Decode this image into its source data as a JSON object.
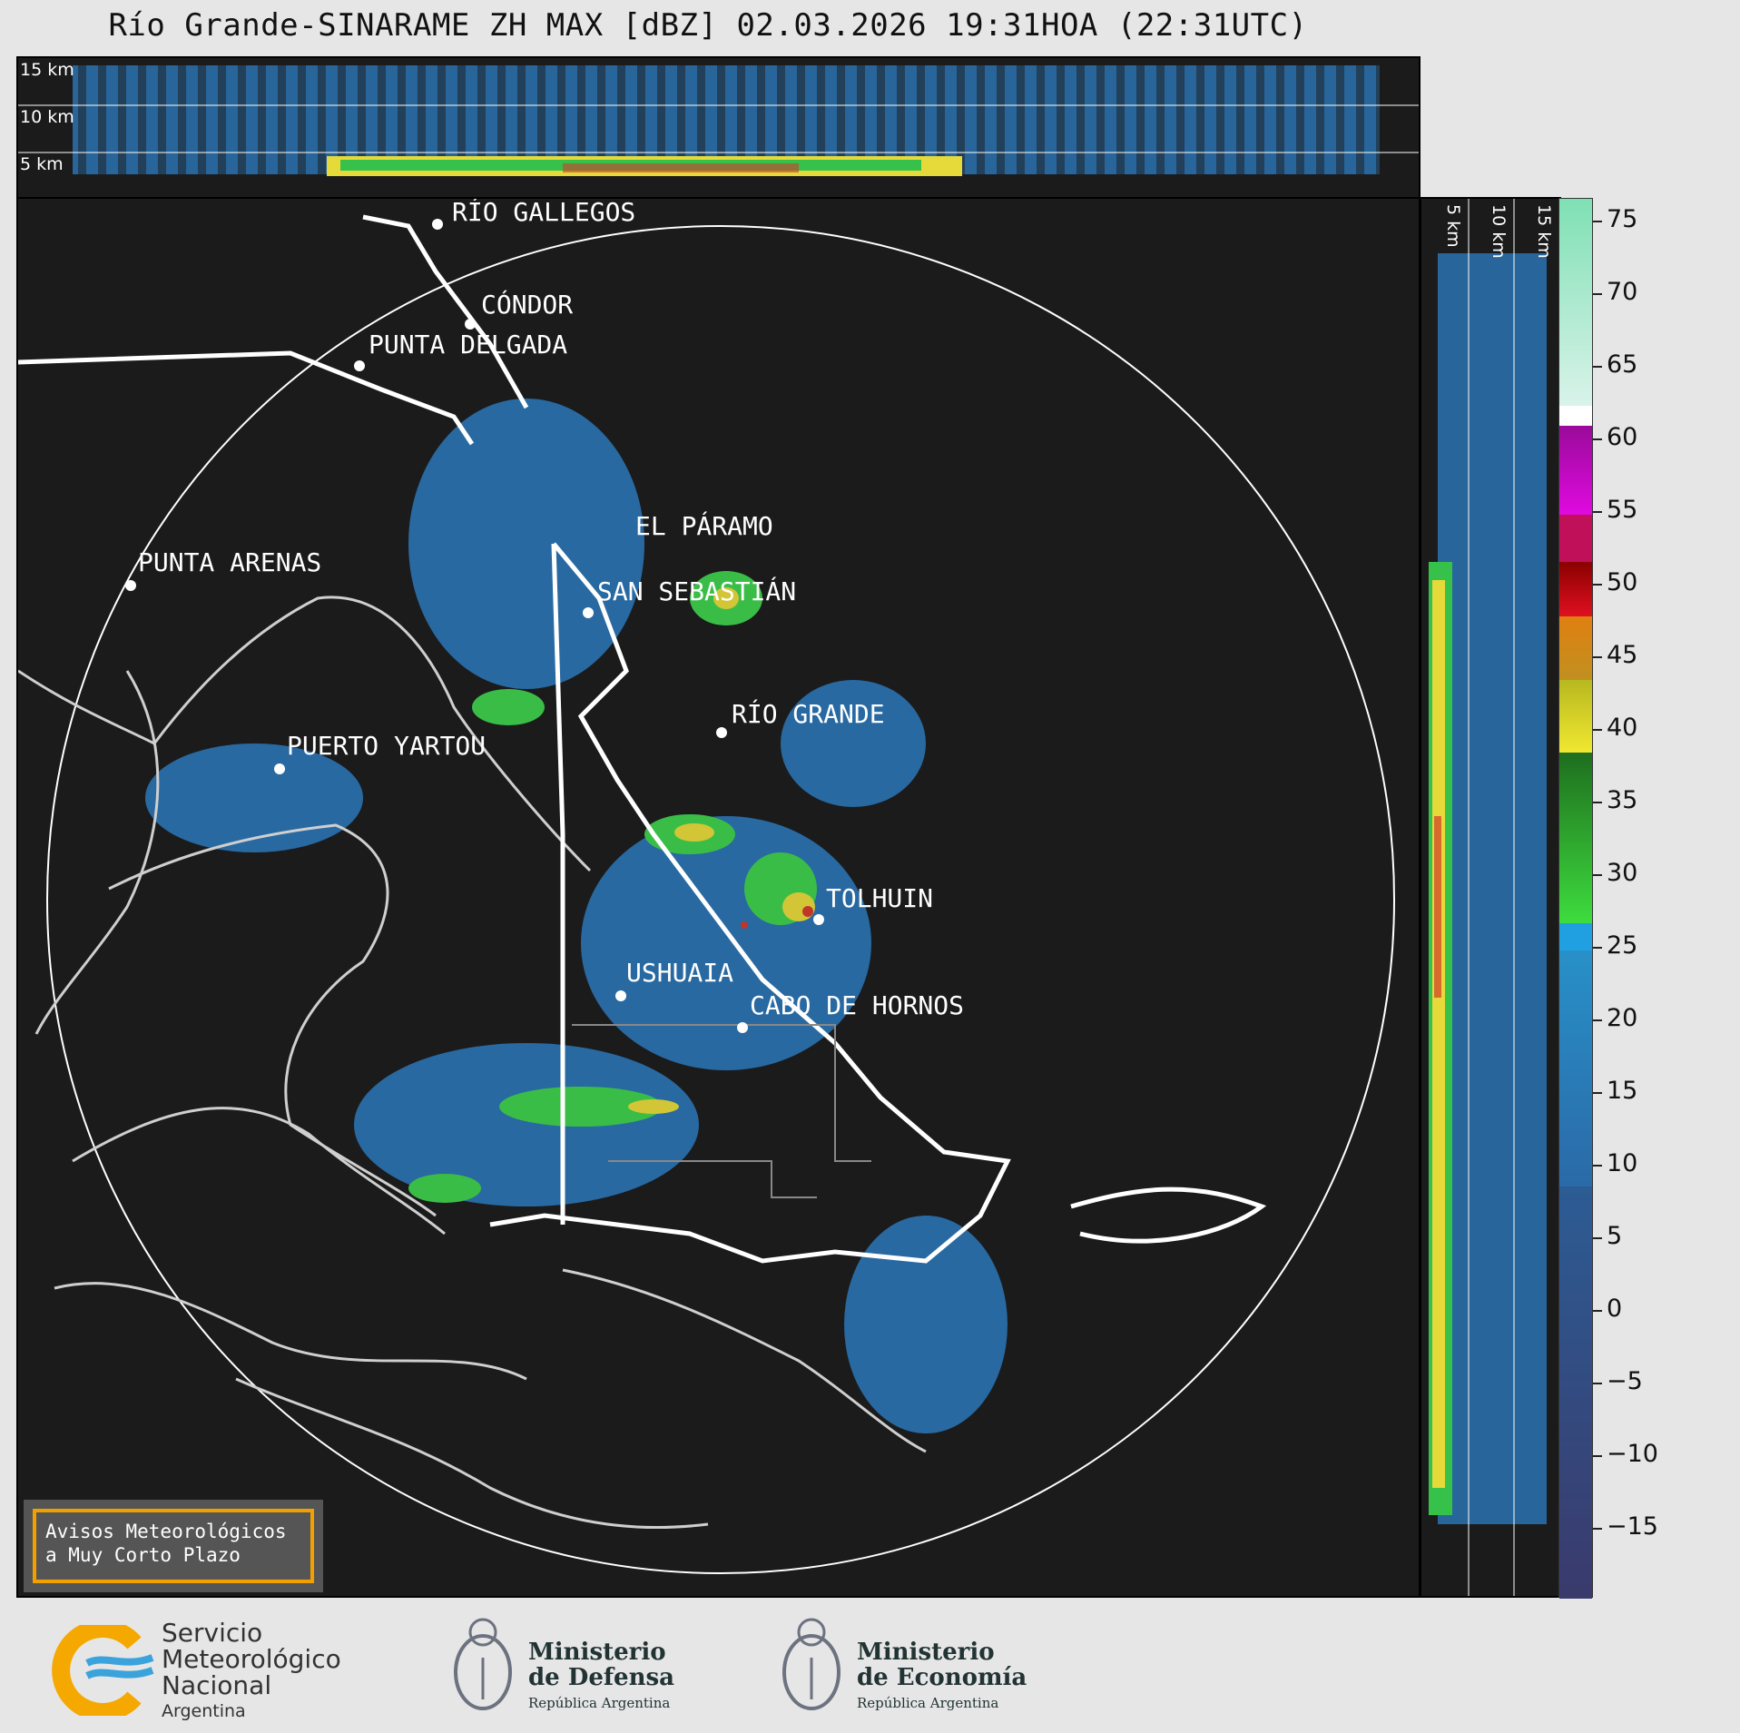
{
  "title": "Río Grande-SINARAME ZH MAX [dBZ] 02.03.2026 19:31HOA (22:31UTC)",
  "top_panel": {
    "height_labels": [
      "15 km",
      "10 km",
      "5 km"
    ]
  },
  "side_panel": {
    "height_labels": [
      "5 km",
      "10 km",
      "15 km"
    ]
  },
  "map": {
    "range_ring": true,
    "cities": [
      {
        "name": "RÍO GALLEGOS"
      },
      {
        "name": "CÓNDOR"
      },
      {
        "name": "PUNTA DELGADA"
      },
      {
        "name": "EL PÁRAMO"
      },
      {
        "name": "PUNTA ARENAS"
      },
      {
        "name": "SAN SEBASTIÁN"
      },
      {
        "name": "RÍO GRANDE"
      },
      {
        "name": "PUERTO YARTOU"
      },
      {
        "name": "TOLHUIN"
      },
      {
        "name": "USHUAIA"
      },
      {
        "name": "CABO DE HORNOS"
      }
    ]
  },
  "colorbar": {
    "unit": "dBZ",
    "ticks": [
      "75",
      "70",
      "65",
      "60",
      "55",
      "50",
      "45",
      "40",
      "35",
      "30",
      "25",
      "20",
      "15",
      "10",
      "5",
      "0",
      "−5",
      "−10",
      "−15"
    ]
  },
  "notice": {
    "line1": "Avisos Meteorológicos",
    "line2": "a Muy Corto Plazo"
  },
  "footer": {
    "smn": {
      "line1": "Servicio",
      "line2": "Meteorológico",
      "line3": "Nacional",
      "country": "Argentina"
    },
    "defensa": {
      "line1": "Ministerio",
      "line2": "de Defensa",
      "sub": "República Argentina"
    },
    "economia": {
      "line1": "Ministerio",
      "line2": "de Economía",
      "sub": "República Argentina"
    }
  },
  "colors": {
    "background": "#1b1b1b",
    "notice_border": "#f2a000",
    "smn_orange": "#f5a800",
    "smn_blue": "#3ba3dc"
  }
}
